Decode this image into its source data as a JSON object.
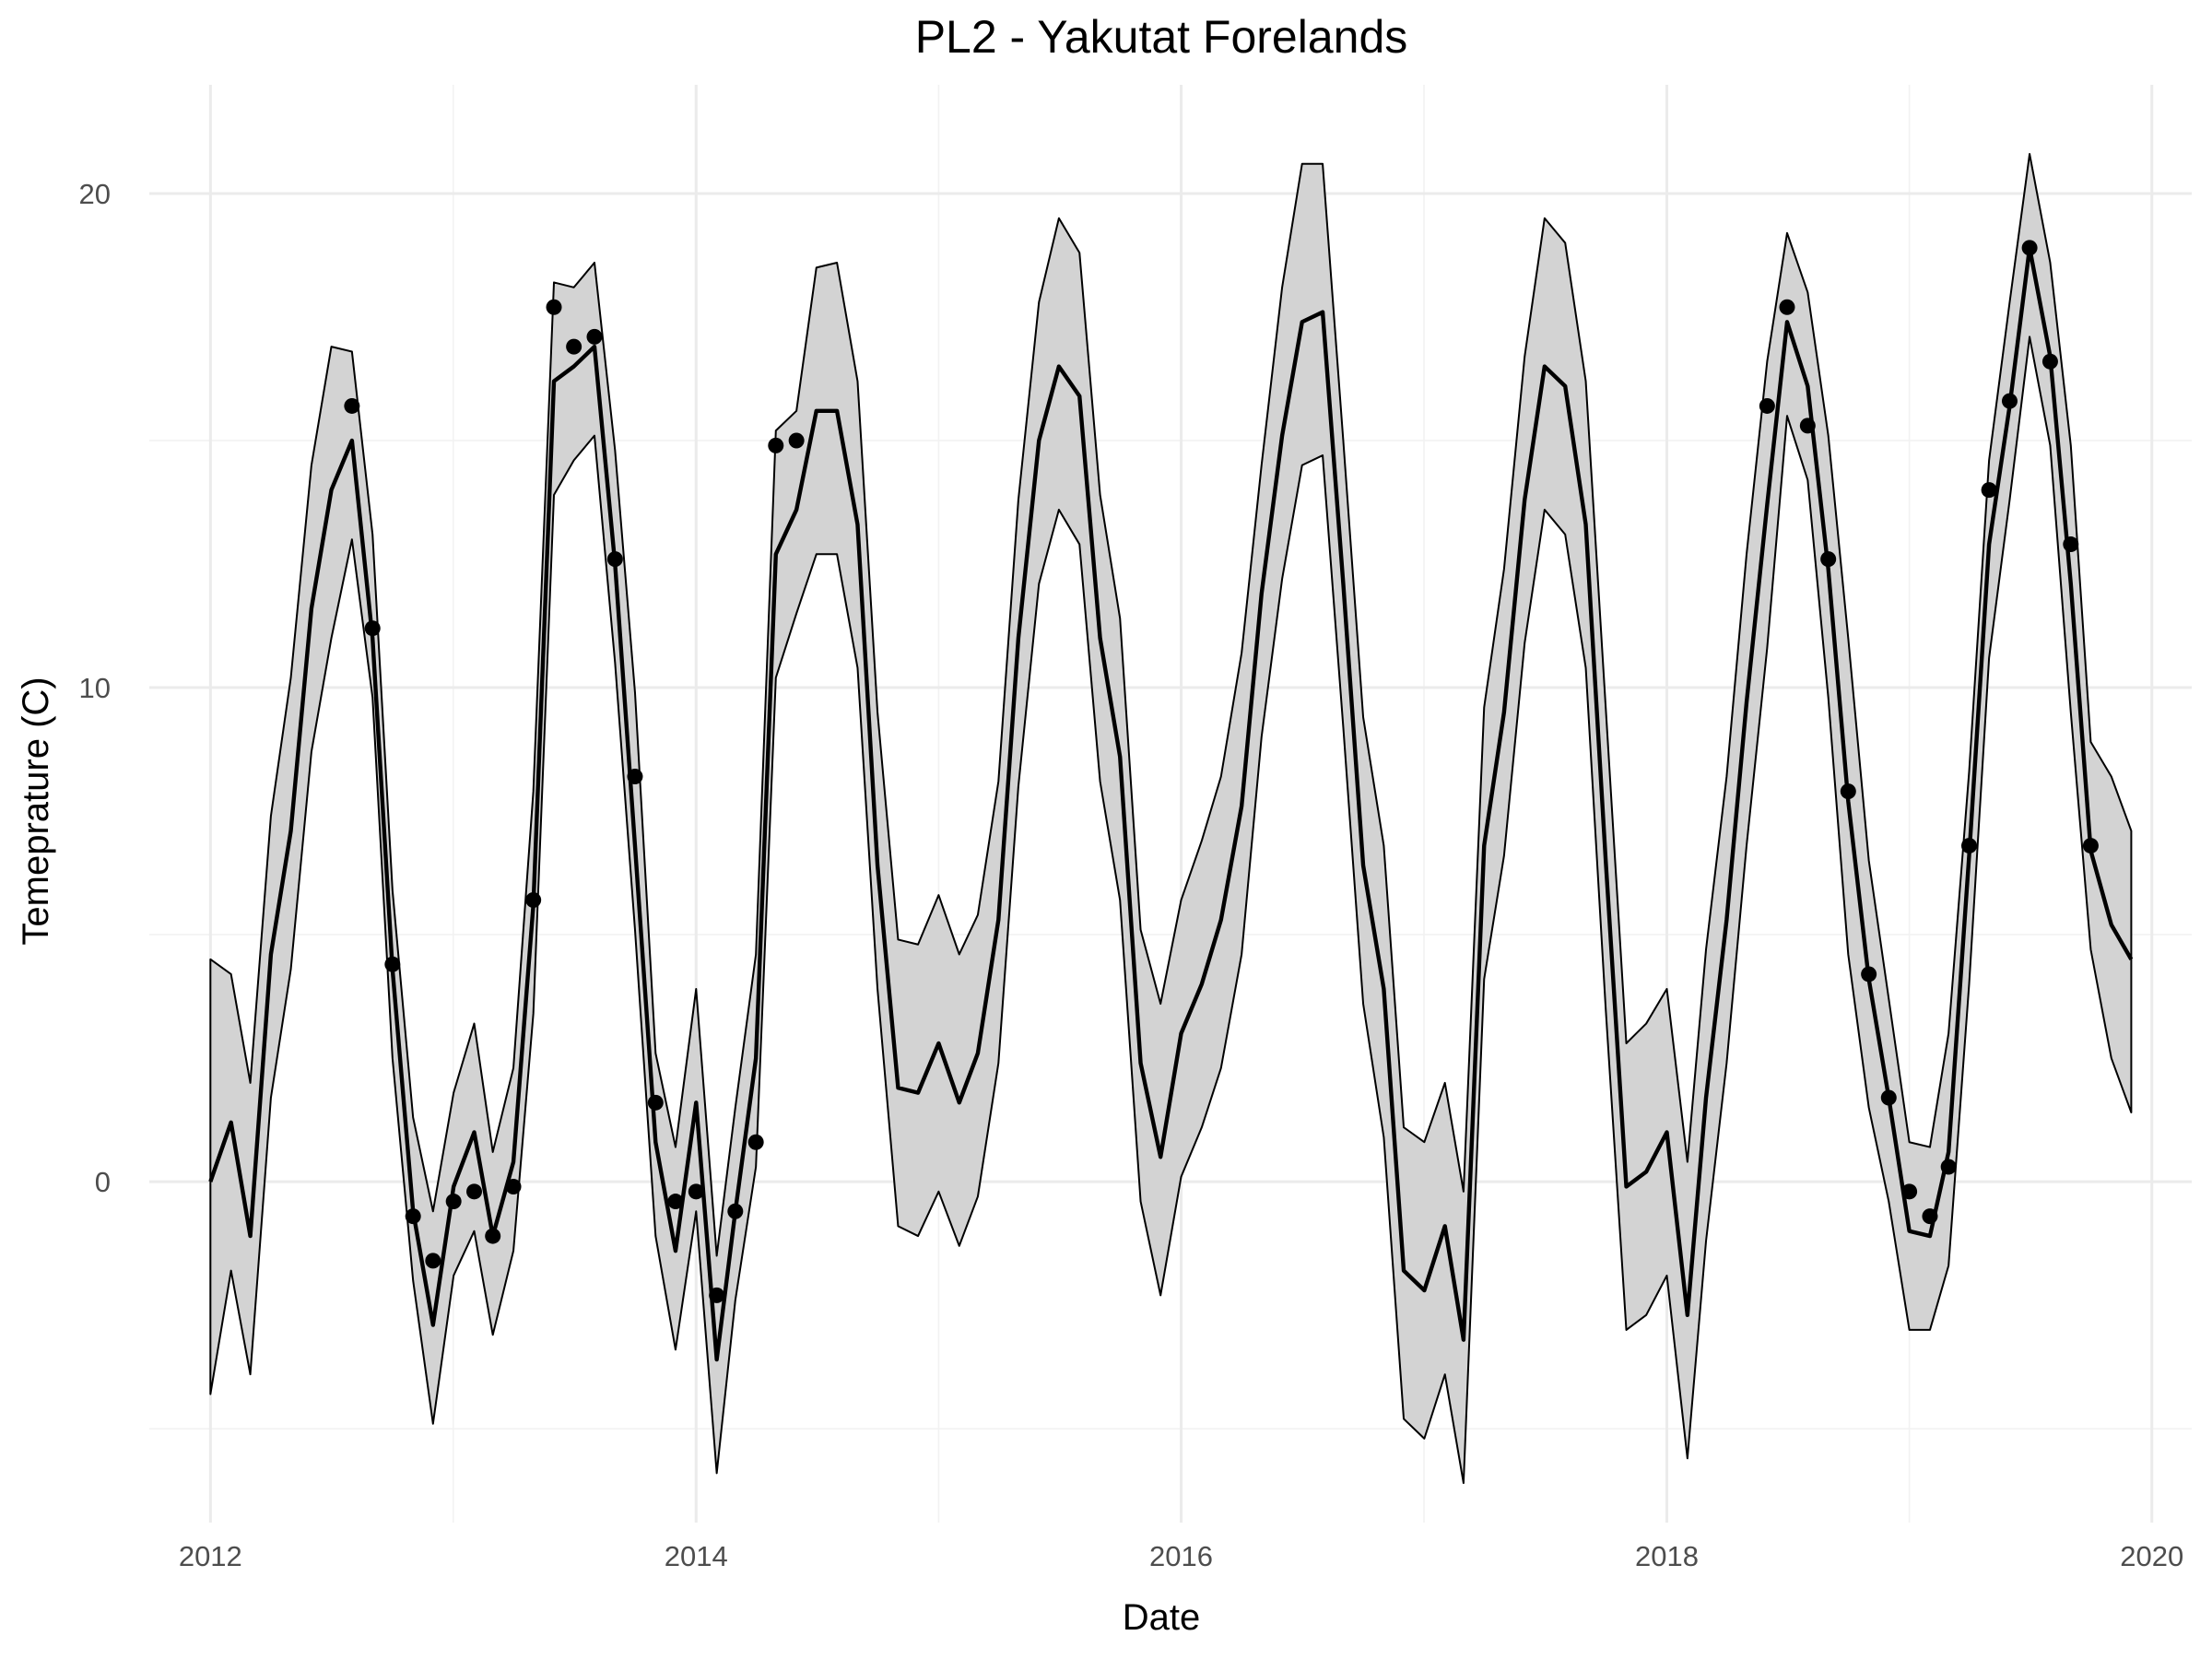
{
  "chart_data": {
    "type": "line",
    "title": "PL2 - Yakutat Forelands",
    "xlabel": "Date",
    "ylabel": "Temeprature (C)",
    "xlim": [
      "2011-10-01",
      "2020-03-01"
    ],
    "ylim": [
      -6.9,
      22.2
    ],
    "x_ticks": [
      {
        "date": "2012-01-01",
        "label": "2012"
      },
      {
        "date": "2014-01-01",
        "label": "2014"
      },
      {
        "date": "2016-01-01",
        "label": "2016"
      },
      {
        "date": "2018-01-01",
        "label": "2018"
      },
      {
        "date": "2020-01-01",
        "label": "2020"
      }
    ],
    "y_ticks": [
      0,
      10,
      20
    ],
    "grid": true,
    "legend": "none",
    "colors": {
      "band_fill": "#d3d3d3",
      "line": "#000000",
      "points": "#000000",
      "grid": "#ebebeb"
    },
    "series": [
      {
        "x": [
          "2012-01",
          "2012-02",
          "2012-03",
          "2012-04",
          "2012-05",
          "2012-06",
          "2012-07",
          "2012-08",
          "2012-09",
          "2012-10",
          "2012-11",
          "2012-12",
          "2013-01",
          "2013-02",
          "2013-03",
          "2013-04",
          "2013-05",
          "2013-06",
          "2013-07",
          "2013-08",
          "2013-09",
          "2013-10",
          "2013-11",
          "2013-12",
          "2014-01",
          "2014-02",
          "2014-03",
          "2014-04",
          "2014-05",
          "2014-06",
          "2014-07",
          "2014-08",
          "2014-09",
          "2014-10",
          "2014-11",
          "2014-12",
          "2015-01",
          "2015-02",
          "2015-03",
          "2015-04",
          "2015-05",
          "2015-06",
          "2015-07",
          "2015-08",
          "2015-09",
          "2015-10",
          "2015-11",
          "2015-12",
          "2016-01",
          "2016-02",
          "2016-03",
          "2016-04",
          "2016-05",
          "2016-06",
          "2016-07",
          "2016-08",
          "2016-09",
          "2016-10",
          "2016-11",
          "2016-12",
          "2017-01",
          "2017-02",
          "2017-03",
          "2017-04",
          "2017-05",
          "2017-06",
          "2017-07",
          "2017-08",
          "2017-09",
          "2017-10",
          "2017-11",
          "2017-12",
          "2018-01",
          "2018-02",
          "2018-03",
          "2018-04",
          "2018-05",
          "2018-06",
          "2018-07",
          "2018-08",
          "2018-09",
          "2018-10",
          "2018-11",
          "2018-12",
          "2019-01",
          "2019-02",
          "2019-03",
          "2019-04",
          "2019-05",
          "2019-06",
          "2019-07",
          "2019-08",
          "2019-09",
          "2019-10",
          "2019-11",
          "2019-12"
        ],
        "fit": [
          0.0,
          1.2,
          -1.1,
          4.6,
          7.1,
          11.6,
          14.0,
          15.0,
          11.0,
          4.3,
          -0.6,
          -2.9,
          -0.1,
          1.0,
          -1.1,
          0.4,
          5.6,
          16.2,
          16.5,
          16.9,
          12.5,
          6.8,
          0.8,
          -1.4,
          1.6,
          -3.6,
          -0.6,
          2.5,
          12.7,
          13.6,
          15.6,
          15.6,
          13.3,
          6.4,
          1.9,
          1.8,
          2.8,
          1.6,
          2.6,
          5.3,
          11.0,
          15.0,
          16.5,
          15.9,
          11.0,
          8.6,
          2.4,
          0.5,
          3.0,
          4.0,
          5.3,
          7.6,
          11.9,
          15.1,
          17.4,
          17.6,
          12.1,
          6.4,
          3.9,
          -1.8,
          -2.2,
          -0.9,
          -3.2,
          6.8,
          9.5,
          13.8,
          16.5,
          16.1,
          13.3,
          6.5,
          -0.1,
          0.2,
          1.0,
          -2.7,
          1.7,
          5.3,
          9.7,
          13.7,
          17.4,
          16.1,
          12.4,
          7.7,
          4.1,
          1.7,
          -1.0,
          -1.1,
          0.6,
          6.6,
          12.9,
          15.7,
          18.9,
          16.7,
          12.1,
          6.7,
          5.2,
          4.5
        ],
        "upper": [
          4.5,
          4.2,
          2.0,
          7.4,
          10.2,
          14.5,
          16.9,
          16.8,
          13.1,
          5.9,
          1.3,
          -0.6,
          1.8,
          3.2,
          0.6,
          2.3,
          7.9,
          18.2,
          18.1,
          18.6,
          14.8,
          9.9,
          2.6,
          0.7,
          3.9,
          -1.5,
          1.5,
          4.6,
          15.2,
          15.6,
          18.5,
          18.6,
          16.2,
          9.5,
          4.9,
          4.8,
          5.8,
          4.6,
          5.4,
          8.1,
          13.8,
          17.8,
          19.5,
          18.8,
          13.9,
          11.4,
          5.1,
          3.6,
          5.7,
          6.9,
          8.2,
          10.7,
          14.5,
          18.1,
          20.6,
          20.6,
          15.0,
          9.4,
          6.8,
          1.1,
          0.8,
          2.0,
          -0.2,
          9.6,
          12.4,
          16.7,
          19.5,
          19.0,
          16.2,
          9.6,
          2.8,
          3.2,
          3.9,
          0.4,
          4.7,
          8.2,
          12.7,
          16.6,
          19.2,
          18.0,
          15.1,
          11.0,
          6.5,
          3.7,
          0.8,
          0.7,
          3.0,
          8.3,
          14.6,
          17.8,
          20.8,
          18.6,
          14.9,
          8.9,
          8.2,
          7.1
        ],
        "lower": [
          -4.3,
          -1.8,
          -3.9,
          1.7,
          4.3,
          8.7,
          11.0,
          13.0,
          9.8,
          2.5,
          -2.0,
          -4.9,
          -1.9,
          -1.0,
          -3.1,
          -1.4,
          3.4,
          13.9,
          14.6,
          15.1,
          10.5,
          5.1,
          -1.1,
          -3.4,
          -0.6,
          -5.9,
          -2.4,
          0.3,
          10.2,
          11.5,
          12.7,
          12.7,
          10.4,
          3.9,
          -0.9,
          -1.1,
          -0.2,
          -1.3,
          -0.3,
          2.4,
          8.0,
          12.1,
          13.6,
          12.9,
          8.1,
          5.7,
          -0.4,
          -2.3,
          0.1,
          1.1,
          2.3,
          4.6,
          9.0,
          12.2,
          14.5,
          14.7,
          9.2,
          3.6,
          0.9,
          -4.8,
          -5.2,
          -3.9,
          -6.1,
          4.1,
          6.6,
          10.9,
          13.6,
          13.1,
          10.4,
          3.5,
          -3.0,
          -2.7,
          -1.9,
          -5.6,
          -1.2,
          2.4,
          6.8,
          10.8,
          15.5,
          14.2,
          9.8,
          4.6,
          1.5,
          -0.4,
          -3.0,
          -3.0,
          -1.7,
          4.0,
          10.6,
          13.8,
          17.1,
          14.9,
          9.5,
          4.7,
          2.5,
          1.4
        ]
      },
      {
        "x": [
          "2012-08",
          "2012-09",
          "2012-10",
          "2012-11",
          "2012-12",
          "2013-01",
          "2013-02",
          "2013-03",
          "2013-04",
          "2013-05",
          "2013-06",
          "2013-07",
          "2013-08",
          "2013-09",
          "2013-10",
          "2013-11",
          "2013-12",
          "2014-01",
          "2014-02",
          "2014-03",
          "2014-04",
          "2014-05",
          "2014-06",
          "2018-06",
          "2018-07",
          "2018-08",
          "2018-09",
          "2018-10",
          "2018-11",
          "2018-12",
          "2019-01",
          "2019-02",
          "2019-03",
          "2019-04",
          "2019-05",
          "2019-06",
          "2019-07",
          "2019-08",
          "2019-09",
          "2019-10"
        ],
        "values": [
          15.7,
          11.2,
          4.4,
          -0.7,
          -1.6,
          -0.4,
          -0.2,
          -1.1,
          -0.1,
          5.7,
          17.7,
          16.9,
          17.1,
          12.6,
          8.2,
          1.6,
          -0.4,
          -0.2,
          -2.3,
          -0.6,
          0.8,
          14.9,
          15.0,
          15.7,
          17.7,
          15.3,
          12.6,
          7.9,
          4.2,
          1.7,
          -0.2,
          -0.7,
          0.3,
          6.8,
          14.0,
          15.8,
          18.9,
          16.6,
          12.9,
          6.8
        ]
      }
    ]
  }
}
